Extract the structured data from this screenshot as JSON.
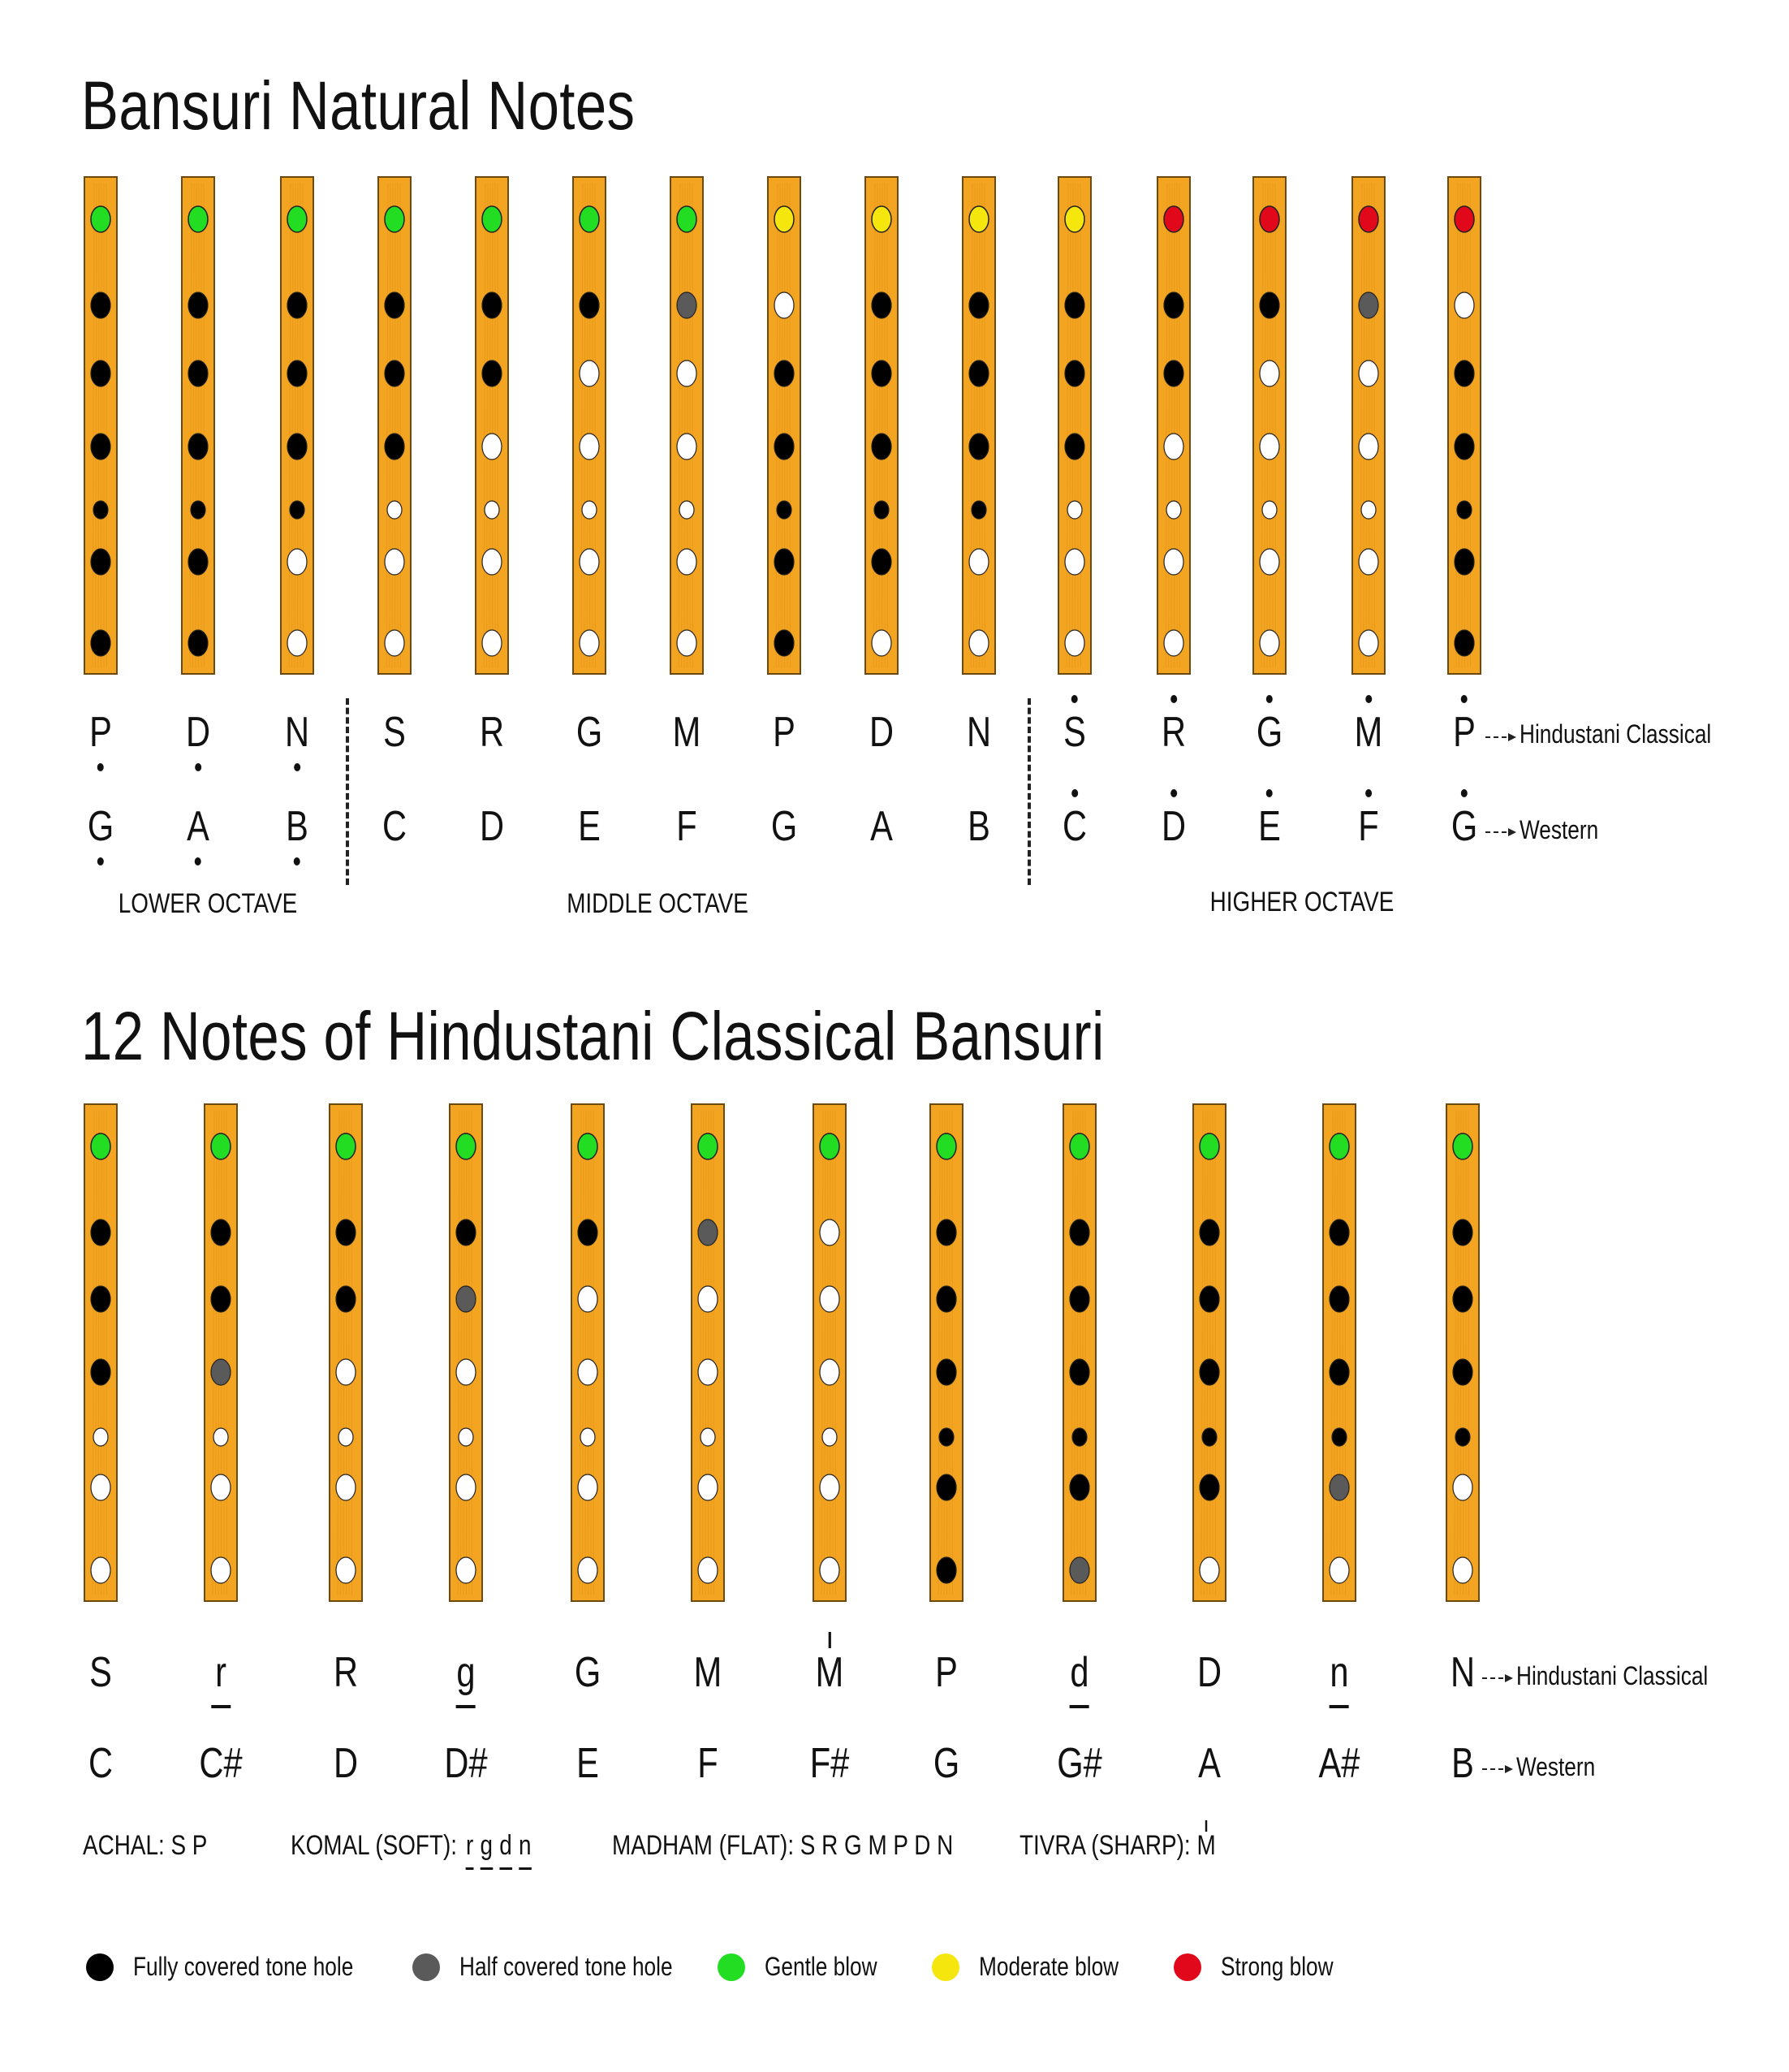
{
  "colors": {
    "bamboo": "#F3A521",
    "bamboo_edge": "#6b4a10",
    "covered": "#000000",
    "half": "#5a5a5a",
    "open": "#ffffff",
    "gentle": "#22dd22",
    "moderate": "#f5e60e",
    "strong": "#e0081a"
  },
  "section1": {
    "title": "Bansuri Natural Notes",
    "flutes": [
      {
        "blow": "gentle",
        "holes": [
          "c",
          "c",
          "c",
          "c",
          "c",
          "c"
        ]
      },
      {
        "blow": "gentle",
        "holes": [
          "c",
          "c",
          "c",
          "c",
          "c",
          "c"
        ]
      },
      {
        "blow": "gentle",
        "holes": [
          "c",
          "c",
          "c",
          "c",
          "o",
          "o"
        ]
      },
      {
        "blow": "gentle",
        "holes": [
          "c",
          "c",
          "c",
          "o",
          "o",
          "o"
        ]
      },
      {
        "blow": "gentle",
        "holes": [
          "c",
          "c",
          "o",
          "o",
          "o",
          "o"
        ]
      },
      {
        "blow": "gentle",
        "holes": [
          "c",
          "o",
          "o",
          "o",
          "o",
          "o"
        ]
      },
      {
        "blow": "gentle",
        "holes": [
          "h",
          "o",
          "o",
          "o",
          "o",
          "o"
        ]
      },
      {
        "blow": "moderate",
        "holes": [
          "o",
          "c",
          "c",
          "c",
          "c",
          "c"
        ]
      },
      {
        "blow": "moderate",
        "holes": [
          "c",
          "c",
          "c",
          "c",
          "c",
          "o"
        ]
      },
      {
        "blow": "moderate",
        "holes": [
          "c",
          "c",
          "c",
          "c",
          "o",
          "o"
        ]
      },
      {
        "blow": "moderate",
        "holes": [
          "c",
          "c",
          "c",
          "o",
          "o",
          "o"
        ]
      },
      {
        "blow": "strong",
        "holes": [
          "c",
          "c",
          "o",
          "o",
          "o",
          "o"
        ]
      },
      {
        "blow": "strong",
        "holes": [
          "c",
          "o",
          "o",
          "o",
          "o",
          "o"
        ]
      },
      {
        "blow": "strong",
        "holes": [
          "h",
          "o",
          "o",
          "o",
          "o",
          "o"
        ]
      },
      {
        "blow": "strong",
        "holes": [
          "o",
          "c",
          "c",
          "c",
          "c",
          "c"
        ]
      }
    ],
    "hindustani": [
      "P",
      "D",
      "N",
      "S",
      "R",
      "G",
      "M",
      "P",
      "D",
      "N",
      "S",
      "R",
      "G",
      "M",
      "P"
    ],
    "western": [
      "G",
      "A",
      "B",
      "C",
      "D",
      "E",
      "F",
      "G",
      "A",
      "B",
      "C",
      "D",
      "E",
      "F",
      "G"
    ],
    "octave_marks": [
      "below",
      "below",
      "below",
      "none",
      "none",
      "none",
      "none",
      "none",
      "none",
      "none",
      "above",
      "above",
      "above",
      "above",
      "above"
    ],
    "row_labels": {
      "hindustani": "Hindustani Classical",
      "western": "Western"
    },
    "octaves": [
      "LOWER OCTAVE",
      "MIDDLE OCTAVE",
      "HIGHER OCTAVE"
    ]
  },
  "section2": {
    "title": "12 Notes of Hindustani Classical Bansuri",
    "flutes": [
      {
        "blow": "gentle",
        "holes": [
          "c",
          "c",
          "c",
          "o",
          "o",
          "o"
        ]
      },
      {
        "blow": "gentle",
        "holes": [
          "c",
          "c",
          "h",
          "o",
          "o",
          "o"
        ]
      },
      {
        "blow": "gentle",
        "holes": [
          "c",
          "c",
          "o",
          "o",
          "o",
          "o"
        ]
      },
      {
        "blow": "gentle",
        "holes": [
          "c",
          "h",
          "o",
          "o",
          "o",
          "o"
        ]
      },
      {
        "blow": "gentle",
        "holes": [
          "c",
          "o",
          "o",
          "o",
          "o",
          "o"
        ]
      },
      {
        "blow": "gentle",
        "holes": [
          "h",
          "o",
          "o",
          "o",
          "o",
          "o"
        ]
      },
      {
        "blow": "gentle",
        "holes": [
          "o",
          "o",
          "o",
          "o",
          "o",
          "o"
        ]
      },
      {
        "blow": "gentle",
        "holes": [
          "c",
          "c",
          "c",
          "c",
          "c",
          "c"
        ]
      },
      {
        "blow": "gentle",
        "holes": [
          "c",
          "c",
          "c",
          "c",
          "c",
          "h"
        ]
      },
      {
        "blow": "gentle",
        "holes": [
          "c",
          "c",
          "c",
          "c",
          "c",
          "o"
        ]
      },
      {
        "blow": "gentle",
        "holes": [
          "c",
          "c",
          "c",
          "c",
          "h",
          "o"
        ]
      },
      {
        "blow": "gentle",
        "holes": [
          "c",
          "c",
          "c",
          "c",
          "o",
          "o"
        ]
      }
    ],
    "hindustani": [
      "S",
      "r",
      "R",
      "g",
      "G",
      "M",
      "M",
      "P",
      "d",
      "D",
      "n",
      "N"
    ],
    "hindustani_marks": [
      "none",
      "under",
      "none",
      "under",
      "none",
      "none",
      "tick",
      "none",
      "under",
      "none",
      "under",
      "none"
    ],
    "western": [
      "C",
      "C#",
      "D",
      "D#",
      "E",
      "F",
      "F#",
      "G",
      "G#",
      "A",
      "A#",
      "B"
    ],
    "row_labels": {
      "hindustani": "Hindustani Classical",
      "western": "Western"
    },
    "swara_groups": {
      "achal": "ACHAL: S P",
      "komal_label": "KOMAL (SOFT):",
      "komal_notes": "r g d n",
      "madham": "MADHAM (FLAT): S R G M P D N",
      "tivra_label": "TIVRA (SHARP):",
      "tivra_note": "M"
    }
  },
  "legend": [
    {
      "color": "covered",
      "label": "Fully covered tone hole"
    },
    {
      "color": "half",
      "label": "Half covered tone hole"
    },
    {
      "color": "gentle",
      "label": "Gentle blow"
    },
    {
      "color": "moderate",
      "label": "Moderate blow"
    },
    {
      "color": "strong",
      "label": "Strong blow"
    }
  ]
}
